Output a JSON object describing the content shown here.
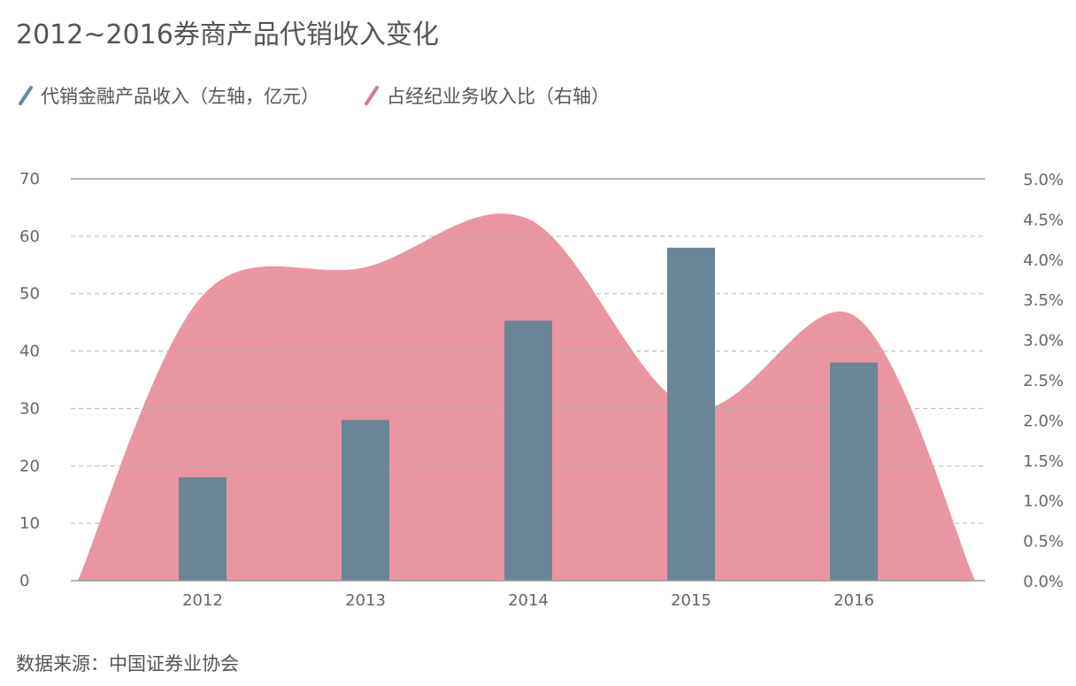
{
  "title": "2012~2016券商产品代销收入变化",
  "source": "数据来源：中国证券业协会",
  "colors": {
    "bar": "#6a8696",
    "area": "#e995a2",
    "grid": "#b5b5b5",
    "axis": "#999999",
    "text": "#555555"
  },
  "chart_data": {
    "type": "bar",
    "title": "2012~2016券商产品代销收入变化",
    "categories": [
      "2012",
      "2013",
      "2014",
      "2015",
      "2016"
    ],
    "series": [
      {
        "name": "代销金融产品收入（左轴，亿元）",
        "type": "bar",
        "axis": "left",
        "values": [
          18,
          28,
          45.3,
          58,
          38
        ]
      },
      {
        "name": "占经纪业务收入比（右轴）",
        "type": "area",
        "axis": "right",
        "values": [
          3.55,
          3.9,
          4.5,
          2.15,
          3.3
        ]
      }
    ],
    "left_axis": {
      "ylim": [
        0,
        70
      ],
      "ticks": [
        0,
        10,
        20,
        30,
        40,
        50,
        60,
        70
      ],
      "tick_labels": [
        "0",
        "10",
        "20",
        "30",
        "40",
        "50",
        "60",
        "70"
      ]
    },
    "right_axis": {
      "ylim": [
        0,
        5
      ],
      "ticks": [
        0,
        0.5,
        1,
        1.5,
        2,
        2.5,
        3,
        3.5,
        4,
        4.5,
        5
      ],
      "tick_labels": [
        "0.0%",
        "0.5%",
        "1.0%",
        "1.5%",
        "2.0%",
        "2.5%",
        "3.0%",
        "3.5%",
        "4.0%",
        "4.5%",
        "5.0%"
      ]
    },
    "grid": true,
    "legend_position": "top-left"
  }
}
